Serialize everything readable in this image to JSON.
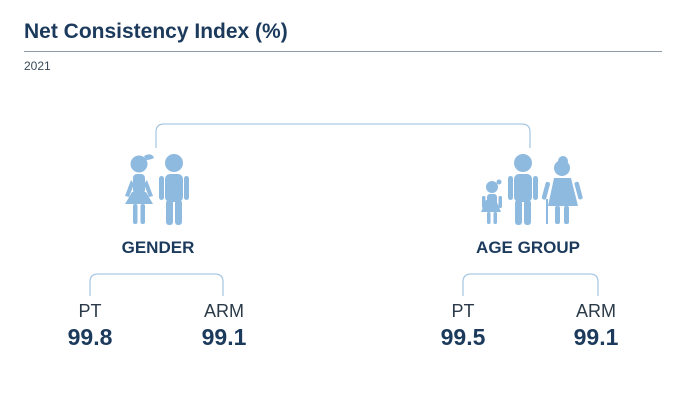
{
  "title": "Net Consistency Index (%)",
  "subtitle": "2021",
  "colors": {
    "figure_fill": "#8fbadf",
    "connector": "#a9c9e3",
    "text_dark": "#1b3a5c"
  },
  "groups": [
    {
      "label": "GENDER",
      "icon": "woman-and-man-icon",
      "metrics": [
        {
          "label": "PT",
          "value": "99.8"
        },
        {
          "label": "ARM",
          "value": "99.1"
        }
      ]
    },
    {
      "label": "AGE GROUP",
      "icon": "child-adult-elder-icon",
      "metrics": [
        {
          "label": "PT",
          "value": "99.5"
        },
        {
          "label": "ARM",
          "value": "99.1"
        }
      ]
    }
  ]
}
